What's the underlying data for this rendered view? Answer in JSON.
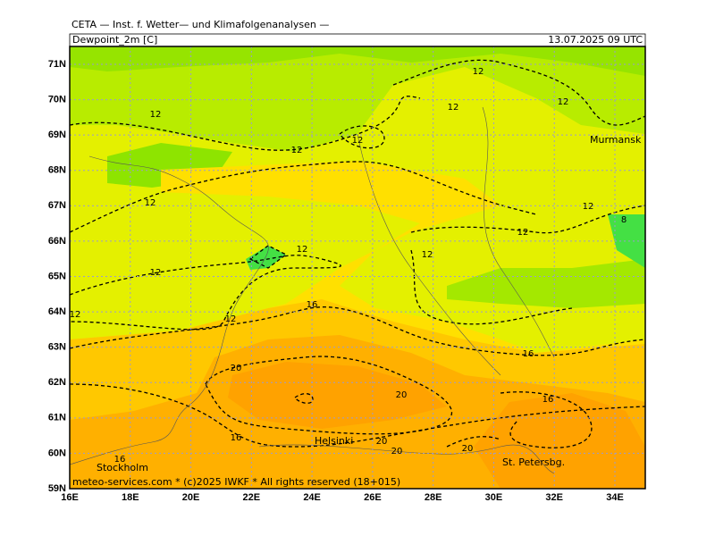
{
  "header": {
    "title": "CETA — Inst. f. Wetter— und Klimafolgenanalysen —",
    "field": "Dewpoint_2m [C]",
    "valid_time": "13.07.2025 09 UTC"
  },
  "lat_labels": [
    "71N",
    "70N",
    "69N",
    "68N",
    "67N",
    "66N",
    "65N",
    "64N",
    "63N",
    "62N",
    "61N",
    "60N",
    "59N"
  ],
  "lon_labels": [
    "16E",
    "18E",
    "20E",
    "22E",
    "24E",
    "26E",
    "28E",
    "30E",
    "32E",
    "34E"
  ],
  "cities": [
    "Murmansk",
    "Helsinki",
    "Stockholm",
    "St. Petersbg."
  ],
  "contour_labels": [
    "12",
    "12",
    "12",
    "12",
    "12",
    "12",
    "12",
    "12",
    "12",
    "12",
    "12",
    "12",
    "12",
    "12",
    "8",
    "16",
    "16",
    "16",
    "16",
    "20",
    "20",
    "20",
    "20",
    "20",
    "16"
  ],
  "footer": "meteo-services.com * (c)2025 IWKF * All rights reserved (18+015)"
}
